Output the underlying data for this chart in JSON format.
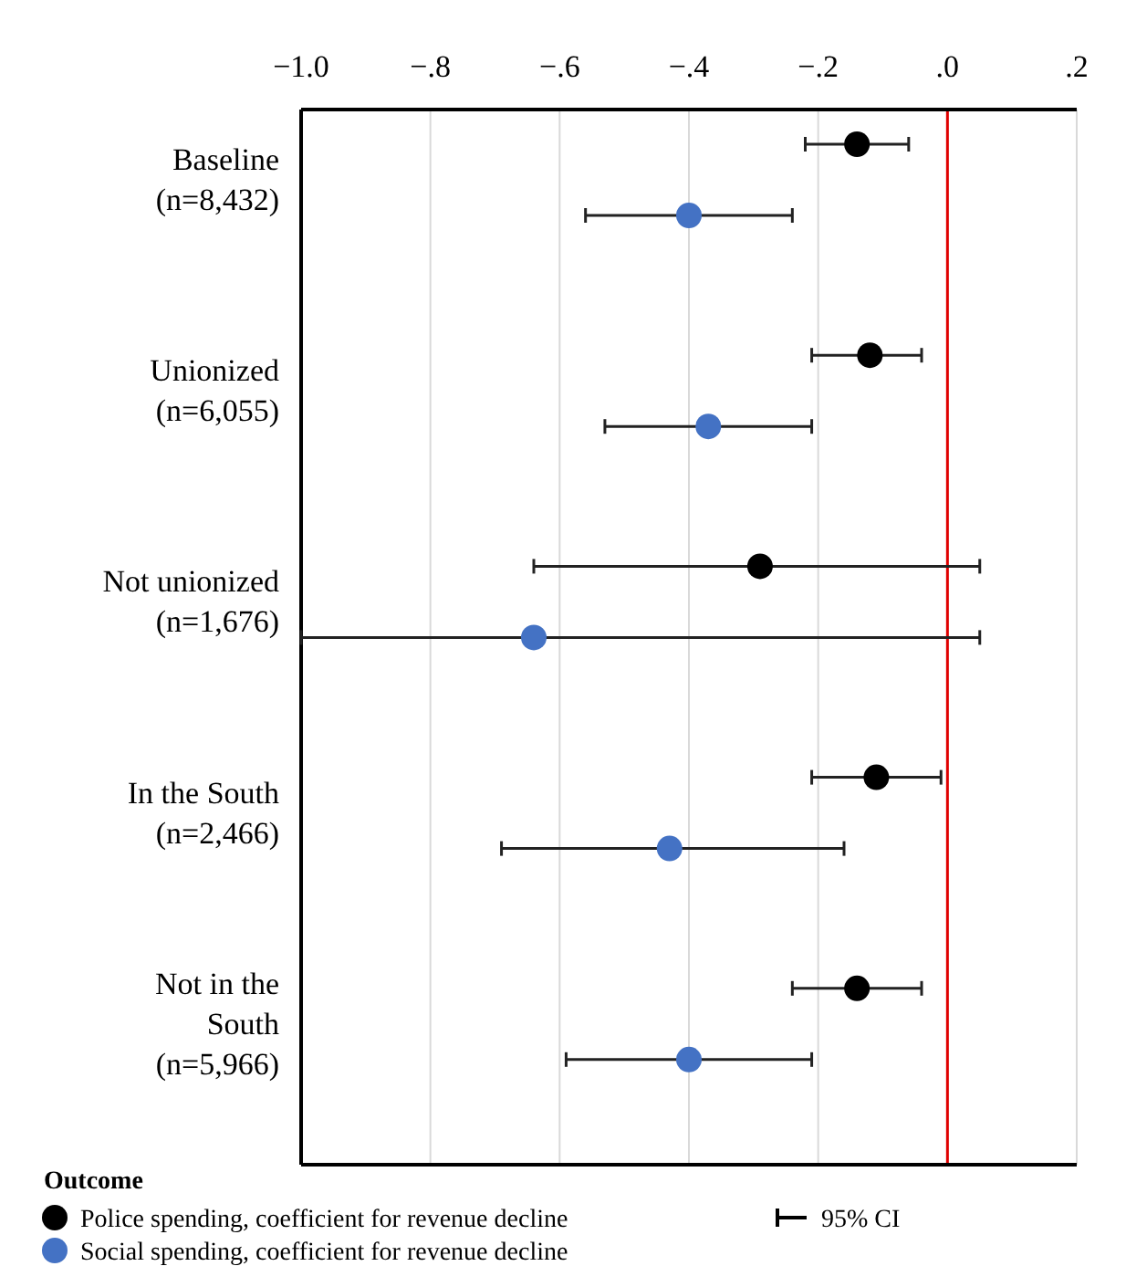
{
  "chart_data": {
    "type": "scatter",
    "orientation": "horizontal",
    "categories": [
      "Baseline\n(n=8,432)",
      "Unionized\n(n=6,055)",
      "Not unionized\n(n=1,676)",
      "In the South\n(n=2,466)",
      "Not in the\nSouth\n(n=5,966)"
    ],
    "series": [
      {
        "name": "Police spending, coefficient for revenue decline",
        "color": "#000000",
        "values": [
          -0.14,
          -0.12,
          -0.29,
          -0.11,
          -0.14
        ],
        "errors": [
          [
            -0.22,
            -0.06
          ],
          [
            -0.21,
            -0.04
          ],
          [
            -0.64,
            0.05
          ],
          [
            -0.21,
            -0.01
          ],
          [
            -0.24,
            -0.04
          ]
        ]
      },
      {
        "name": "Social spending, coefficient for revenue decline",
        "color": "#4472c4",
        "values": [
          -0.4,
          -0.37,
          -0.64,
          -0.43,
          -0.4
        ],
        "errors": [
          [
            -0.56,
            -0.24
          ],
          [
            -0.53,
            -0.21
          ],
          [
            -1.0,
            0.05
          ],
          [
            -0.69,
            -0.16
          ],
          [
            -0.59,
            -0.21
          ]
        ]
      }
    ],
    "xlim": [
      -1.0,
      0.2
    ],
    "xticks": [
      {
        "value": -1.0,
        "label": "−1.0"
      },
      {
        "value": -0.8,
        "label": "−.8"
      },
      {
        "value": -0.6,
        "label": "−.6"
      },
      {
        "value": -0.4,
        "label": "−.4"
      },
      {
        "value": -0.2,
        "label": "−.2"
      },
      {
        "value": 0,
        "label": ".0"
      },
      {
        "value": 0.2,
        "label": ".2"
      }
    ],
    "grid": "x",
    "marker": "circle",
    "legend": "bottom",
    "legend_title": "Outcome",
    "ref_lines": [
      {
        "axis": "x",
        "value": 0,
        "color": "#e00000"
      }
    ],
    "annotations": [
      "95% CI"
    ]
  }
}
